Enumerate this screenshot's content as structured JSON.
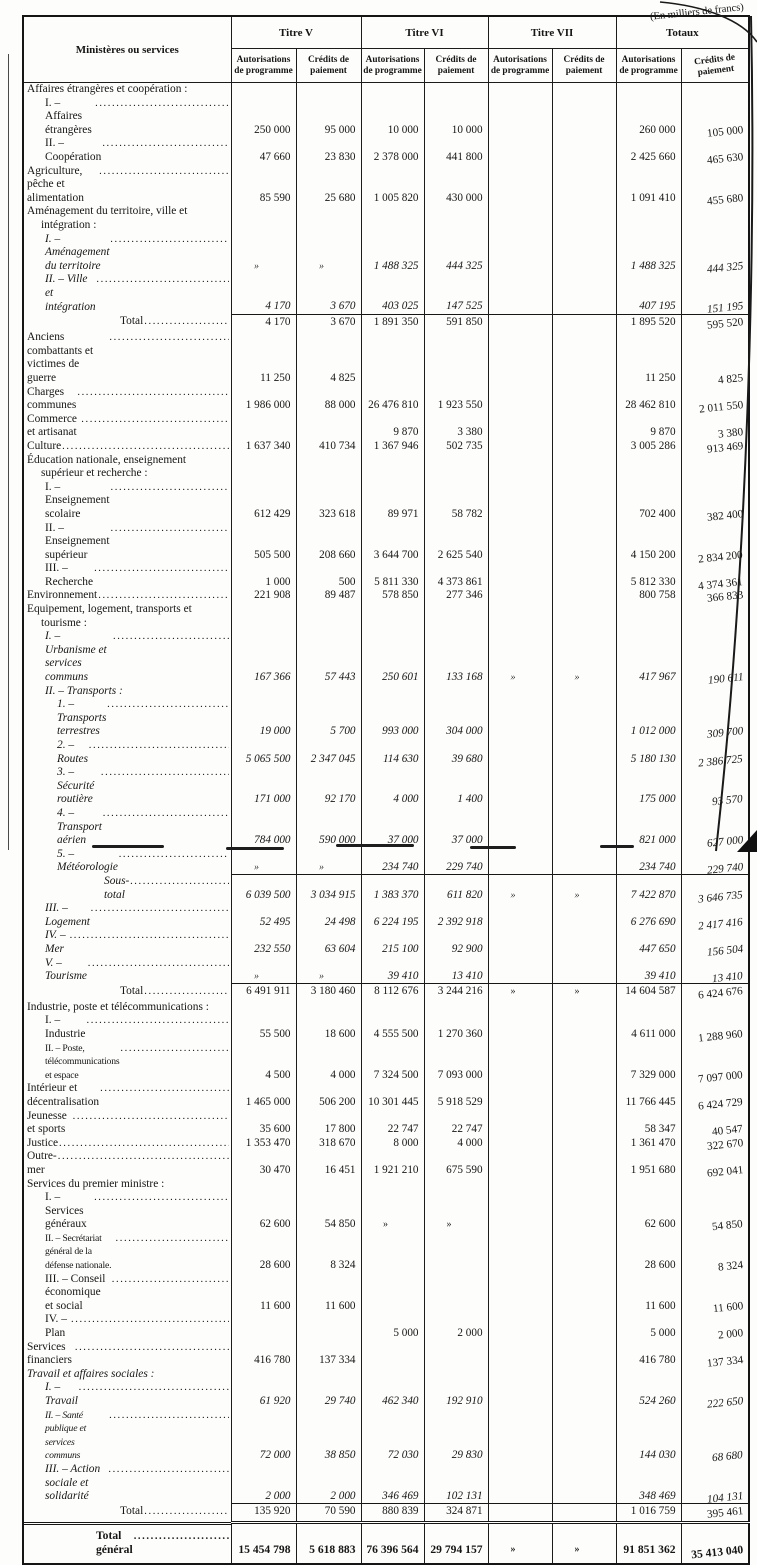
{
  "note": "(En milliers de francs)",
  "colors": {
    "ink": "#161616",
    "paper": "#fdfdfb",
    "border": "#1c1c1c"
  },
  "header": {
    "ministeres": "Ministères ou services",
    "groups": [
      "Titre V",
      "Titre VI",
      "Titre VII",
      "Totaux"
    ],
    "sub_ap": "Autorisations de programme",
    "sub_cp": "Crédits de paiement"
  },
  "rows": [
    {
      "t": "group",
      "l": "Affaires étrangères et coopération :",
      "c": [
        "",
        "",
        "",
        "",
        "",
        "",
        "",
        ""
      ]
    },
    {
      "t": "sub",
      "l": "I. – Affaires étrangères",
      "c": [
        "250 000",
        "95 000",
        "10 000",
        "10 000",
        "",
        "",
        "260 000",
        "105 000"
      ]
    },
    {
      "t": "sub",
      "l": "II. – Coopération",
      "c": [
        "47 660",
        "23 830",
        "2 378 000",
        "441 800",
        "",
        "",
        "2 425 660",
        "465 630"
      ]
    },
    {
      "t": "main",
      "l": "Agriculture, pêche et alimentation",
      "c": [
        "85 590",
        "25 680",
        "1 005 820",
        "430 000",
        "",
        "",
        "1 091 410",
        "455 680"
      ]
    },
    {
      "t": "group",
      "l": "Aménagement du territoire, ville et intégration :",
      "c": [
        "",
        "",
        "",
        "",
        "",
        "",
        "",
        ""
      ]
    },
    {
      "t": "subi",
      "l": "I. – Aménagement du territoire",
      "c": [
        "»",
        "»",
        "1 488 325",
        "444 325",
        "",
        "",
        "1 488 325",
        "444 325"
      ]
    },
    {
      "t": "subi",
      "l": "II. – Ville et intégration",
      "c": [
        "4 170",
        "3 670",
        "403 025",
        "147 525",
        "",
        "",
        "407 195",
        "151 195"
      ]
    },
    {
      "t": "total",
      "l": "Total",
      "c": [
        "4 170",
        "3 670",
        "1 891 350",
        "591 850",
        "",
        "",
        "1 895 520",
        "595 520"
      ]
    },
    {
      "t": "main",
      "l": "Anciens combattants et victimes de guerre",
      "c": [
        "11 250",
        "4 825",
        "",
        "",
        "",
        "",
        "11 250",
        "4 825"
      ]
    },
    {
      "t": "main",
      "l": "Charges communes",
      "c": [
        "1 986 000",
        "88 000",
        "26 476 810",
        "1 923 550",
        "",
        "",
        "28 462 810",
        "2 011 550"
      ]
    },
    {
      "t": "main",
      "l": "Commerce et artisanat",
      "c": [
        "",
        "",
        "9 870",
        "3 380",
        "",
        "",
        "9 870",
        "3 380"
      ]
    },
    {
      "t": "main",
      "l": "Culture",
      "c": [
        "1 637 340",
        "410 734",
        "1 367 946",
        "502 735",
        "",
        "",
        "3 005 286",
        "913 469"
      ]
    },
    {
      "t": "group",
      "l": "Éducation nationale, enseignement supérieur et recherche :",
      "c": [
        "",
        "",
        "",
        "",
        "",
        "",
        "",
        ""
      ]
    },
    {
      "t": "sub",
      "l": "I. – Enseignement scolaire",
      "c": [
        "612 429",
        "323 618",
        "89 971",
        "58 782",
        "",
        "",
        "702 400",
        "382 400"
      ]
    },
    {
      "t": "sub",
      "l": "II. – Enseignement supérieur",
      "c": [
        "505 500",
        "208 660",
        "3 644 700",
        "2 625 540",
        "",
        "",
        "4 150 200",
        "2 834 200"
      ]
    },
    {
      "t": "sub",
      "l": "III. – Recherche",
      "c": [
        "1 000",
        "500",
        "5 811 330",
        "4 373 861",
        "",
        "",
        "5 812 330",
        "4 374 361"
      ]
    },
    {
      "t": "main",
      "l": "Environnement",
      "c": [
        "221 908",
        "89 487",
        "578 850",
        "277 346",
        "",
        "",
        "800 758",
        "366 833"
      ]
    },
    {
      "t": "group",
      "l": "Equipement, logement, transports et tourisme :",
      "c": [
        "",
        "",
        "",
        "",
        "",
        "",
        "",
        ""
      ]
    },
    {
      "t": "subi",
      "l": "I. – Urbanisme et services communs",
      "c": [
        "167 366",
        "57 443",
        "250 601",
        "133 168",
        "»",
        "»",
        "417 967",
        "190 611"
      ]
    },
    {
      "t": "subheadi",
      "l": "II. – Transports :",
      "c": [
        "",
        "",
        "",
        "",
        "",
        "",
        "",
        ""
      ]
    },
    {
      "t": "sub2i",
      "l": "1. – Transports terrestres",
      "c": [
        "19 000",
        "5 700",
        "993 000",
        "304 000",
        "",
        "",
        "1 012 000",
        "309 700"
      ]
    },
    {
      "t": "sub2i",
      "l": "2. – Routes",
      "c": [
        "5 065 500",
        "2 347 045",
        "114 630",
        "39 680",
        "",
        "",
        "5 180 130",
        "2 386 725"
      ]
    },
    {
      "t": "sub2i",
      "l": "3. – Sécurité routière",
      "c": [
        "171 000",
        "92 170",
        "4 000",
        "1 400",
        "",
        "",
        "175 000",
        "93 570"
      ]
    },
    {
      "t": "sub2i",
      "l": "4. – Transport aérien",
      "c": [
        "784 000",
        "590 000",
        "37 000",
        "37 000",
        "",
        "",
        "821 000",
        "627 000"
      ]
    },
    {
      "t": "sub2i",
      "l": "5. – Météorologie",
      "c": [
        "»",
        "»",
        "234 740",
        "229 740",
        "",
        "",
        "234 740",
        "229 740"
      ]
    },
    {
      "t": "soustotal",
      "l": "Sous-total",
      "c": [
        "6 039 500",
        "3 034 915",
        "1 383 370",
        "611 820",
        "»",
        "»",
        "7 422 870",
        "3 646 735"
      ]
    },
    {
      "t": "subi",
      "l": "III. – Logement",
      "c": [
        "52 495",
        "24 498",
        "6 224 195",
        "2 392 918",
        "",
        "",
        "6 276 690",
        "2 417 416"
      ]
    },
    {
      "t": "subi",
      "l": "IV. – Mer",
      "c": [
        "232 550",
        "63 604",
        "215 100",
        "92 900",
        "",
        "",
        "447 650",
        "156 504"
      ]
    },
    {
      "t": "subi",
      "l": "V. – Tourisme",
      "c": [
        "»",
        "»",
        "39 410",
        "13 410",
        "",
        "",
        "39 410",
        "13 410"
      ]
    },
    {
      "t": "total",
      "l": "Total",
      "c": [
        "6 491 911",
        "3 180 460",
        "8 112 676",
        "3 244 216",
        "»",
        "»",
        "14 604 587",
        "6 424 676"
      ]
    },
    {
      "t": "group",
      "l": "Industrie, poste et télécommunications :",
      "c": [
        "",
        "",
        "",
        "",
        "",
        "",
        "",
        ""
      ]
    },
    {
      "t": "sub",
      "l": "I. – Industrie",
      "c": [
        "55 500",
        "18 600",
        "4 555 500",
        "1 270 360",
        "",
        "",
        "4 611 000",
        "1 288 960"
      ]
    },
    {
      "t": "sub",
      "l": "II. – Poste, télécommunications et espace",
      "small": true,
      "c": [
        "4 500",
        "4 000",
        "7 324 500",
        "7 093 000",
        "",
        "",
        "7 329 000",
        "7 097 000"
      ]
    },
    {
      "t": "main",
      "l": "Intérieur et décentralisation",
      "c": [
        "1 465 000",
        "506 200",
        "10 301 445",
        "5 918 529",
        "",
        "",
        "11 766 445",
        "6 424 729"
      ]
    },
    {
      "t": "main",
      "l": "Jeunesse et sports",
      "c": [
        "35 600",
        "17 800",
        "22 747",
        "22 747",
        "",
        "",
        "58 347",
        "40 547"
      ]
    },
    {
      "t": "main",
      "l": "Justice",
      "c": [
        "1 353 470",
        "318 670",
        "8 000",
        "4 000",
        "",
        "",
        "1 361 470",
        "322 670"
      ]
    },
    {
      "t": "main",
      "l": "Outre-mer",
      "c": [
        "30 470",
        "16 451",
        "1 921 210",
        "675 590",
        "",
        "",
        "1 951 680",
        "692 041"
      ]
    },
    {
      "t": "group",
      "l": "Services du premier ministre :",
      "c": [
        "",
        "",
        "",
        "",
        "",
        "",
        "",
        ""
      ]
    },
    {
      "t": "sub",
      "l": "I. – Services généraux",
      "c": [
        "62 600",
        "54 850",
        "»",
        "»",
        "",
        "",
        "62 600",
        "54 850"
      ]
    },
    {
      "t": "sub",
      "l": "II. – Secrétariat général de la défense nationale.",
      "small": true,
      "c": [
        "28 600",
        "8 324",
        "",
        "",
        "",
        "",
        "28 600",
        "8 324"
      ]
    },
    {
      "t": "sub",
      "l": "III. – Conseil économique et social",
      "c": [
        "11 600",
        "11 600",
        "",
        "",
        "",
        "",
        "11 600",
        "11 600"
      ]
    },
    {
      "t": "sub",
      "l": "IV. – Plan",
      "c": [
        "",
        "",
        "5 000",
        "2 000",
        "",
        "",
        "5 000",
        "2 000"
      ]
    },
    {
      "t": "main",
      "l": "Services financiers",
      "c": [
        "416 780",
        "137 334",
        "",
        "",
        "",
        "",
        "416 780",
        "137 334"
      ]
    },
    {
      "t": "groupi",
      "l": "Travail et affaires sociales :",
      "c": [
        "",
        "",
        "",
        "",
        "",
        "",
        "",
        ""
      ]
    },
    {
      "t": "subi",
      "l": "I. – Travail",
      "c": [
        "61 920",
        "29 740",
        "462 340",
        "192 910",
        "",
        "",
        "524 260",
        "222 650"
      ]
    },
    {
      "t": "subi",
      "l": "II. – Santé publique et services communs",
      "small": true,
      "c": [
        "72 000",
        "38 850",
        "72 030",
        "29 830",
        "",
        "",
        "144 030",
        "68 680"
      ]
    },
    {
      "t": "subi",
      "l": "III. – Action sociale et solidarité",
      "c": [
        "2 000",
        "2 000",
        "346 469",
        "102 131",
        "",
        "",
        "348 469",
        "104 131"
      ]
    },
    {
      "t": "total",
      "l": "Total",
      "c": [
        "135 920",
        "70 590",
        "880 839",
        "324 871",
        "",
        "",
        "1 016 759",
        "395 461"
      ]
    },
    {
      "t": "grand",
      "l": "Total général",
      "c": [
        "15 454 798",
        "5 618 883",
        "76 396 564",
        "29 794 157",
        "»",
        "»",
        "91 851 362",
        "35 413 040"
      ]
    }
  ]
}
